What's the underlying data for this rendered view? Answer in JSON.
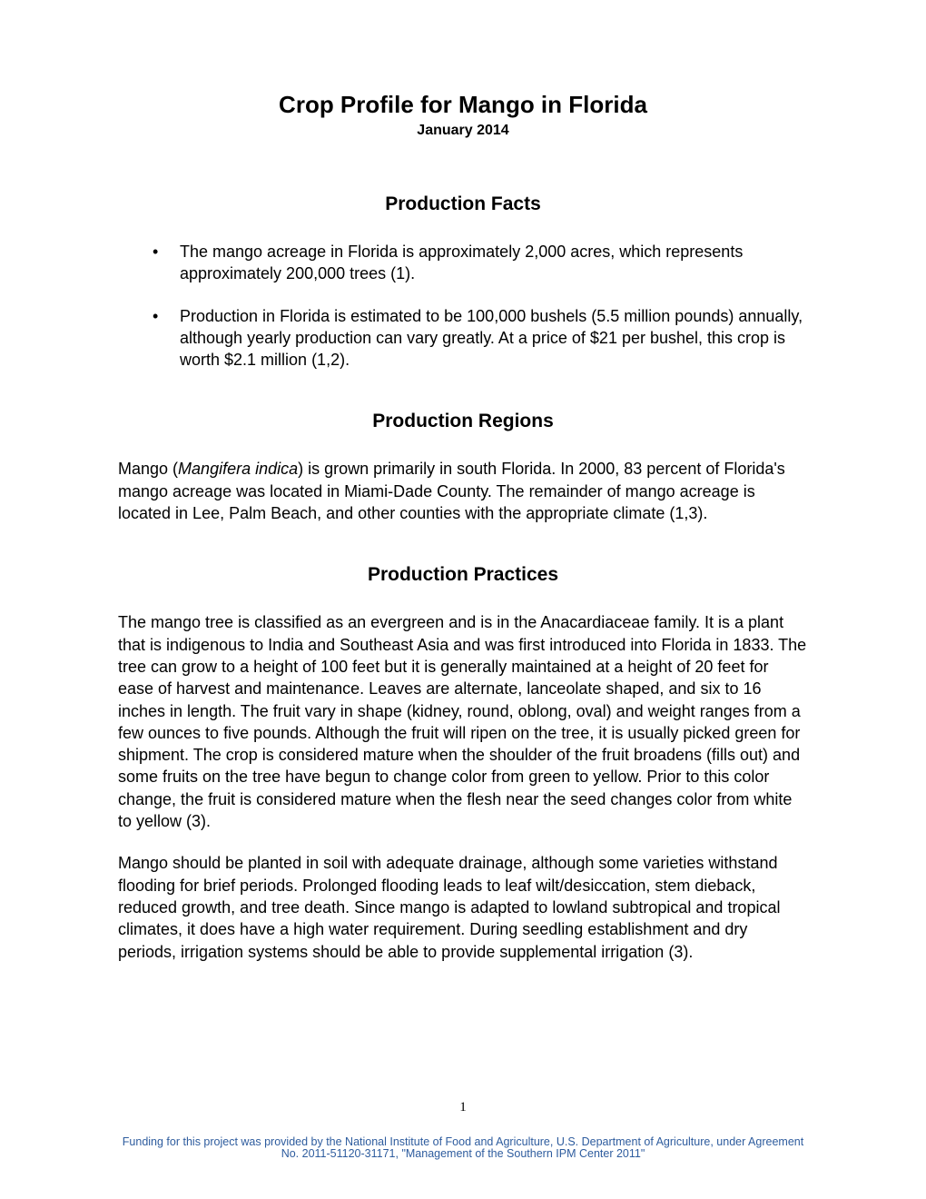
{
  "document": {
    "title": "Crop Profile for Mango in Florida",
    "date": "January 2014",
    "page_number": "1",
    "footer": "Funding for this project was provided by the National Institute of Food and Agriculture, U.S. Department of Agriculture, under Agreement No. 2011-51120-31171, \"Management of the  Southern IPM Center  2011\""
  },
  "sections": {
    "facts": {
      "heading": "Production Facts",
      "bullets": [
        "The mango acreage in Florida is approximately 2,000 acres, which represents approximately 200,000 trees (1).",
        "Production in Florida is estimated to be 100,000 bushels (5.5 million pounds) annually, although yearly production can vary greatly. At a price of $21 per bushel, this crop is worth $2.1 million (1,2)."
      ]
    },
    "regions": {
      "heading": "Production Regions",
      "para_parts": {
        "p1a": "Mango (",
        "p1b": "Mangifera indica",
        "p1c": ") is grown primarily in south Florida. In 2000, 83 percent of Florida's mango acreage was located in Miami-Dade County. The remainder of mango acreage is located in Lee, Palm Beach, and other counties with the appropriate climate (1,3)."
      }
    },
    "practices": {
      "heading": "Production Practices",
      "paragraphs": [
        "The mango tree is classified as an evergreen and is in the Anacardiaceae family. It is a plant that is indigenous to India and Southeast Asia and was first introduced into Florida in 1833. The tree can grow to a height of 100 feet but it is generally maintained at a height of 20 feet for ease of harvest and maintenance. Leaves are alternate, lanceolate shaped, and six to 16 inches in length. The fruit vary in shape (kidney, round, oblong, oval) and weight ranges from a few ounces to five pounds. Although the fruit will ripen on the tree, it is usually picked green for shipment. The crop is considered mature when the shoulder of the fruit broadens (fills out) and some fruits on the tree have begun to change color from green to yellow. Prior to this color change, the fruit is considered mature when the flesh near the seed changes color from white to yellow (3).",
        "Mango should be planted in soil with adequate drainage, although some varieties withstand flooding for brief periods. Prolonged flooding leads to leaf wilt/desiccation, stem dieback, reduced growth, and tree death. Since mango is adapted to lowland subtropical and tropical climates, it does have a high water requirement. During seedling establishment and dry periods, irrigation systems should be able to provide supplemental irrigation (3)."
      ]
    }
  },
  "colors": {
    "text": "#000000",
    "footer": "#2e5c9e",
    "background": "#ffffff"
  },
  "typography": {
    "title_fontsize": 26,
    "subtitle_fontsize": 16,
    "heading_fontsize": 21,
    "body_fontsize": 18,
    "footer_fontsize": 12.5,
    "font_family": "Arial"
  }
}
